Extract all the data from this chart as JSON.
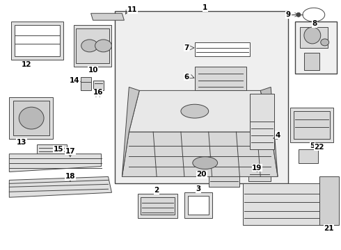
{
  "bg_color": "#ffffff",
  "lc": "#444444",
  "lw": 0.7,
  "fig_w": 4.9,
  "fig_h": 3.6,
  "dpi": 100
}
